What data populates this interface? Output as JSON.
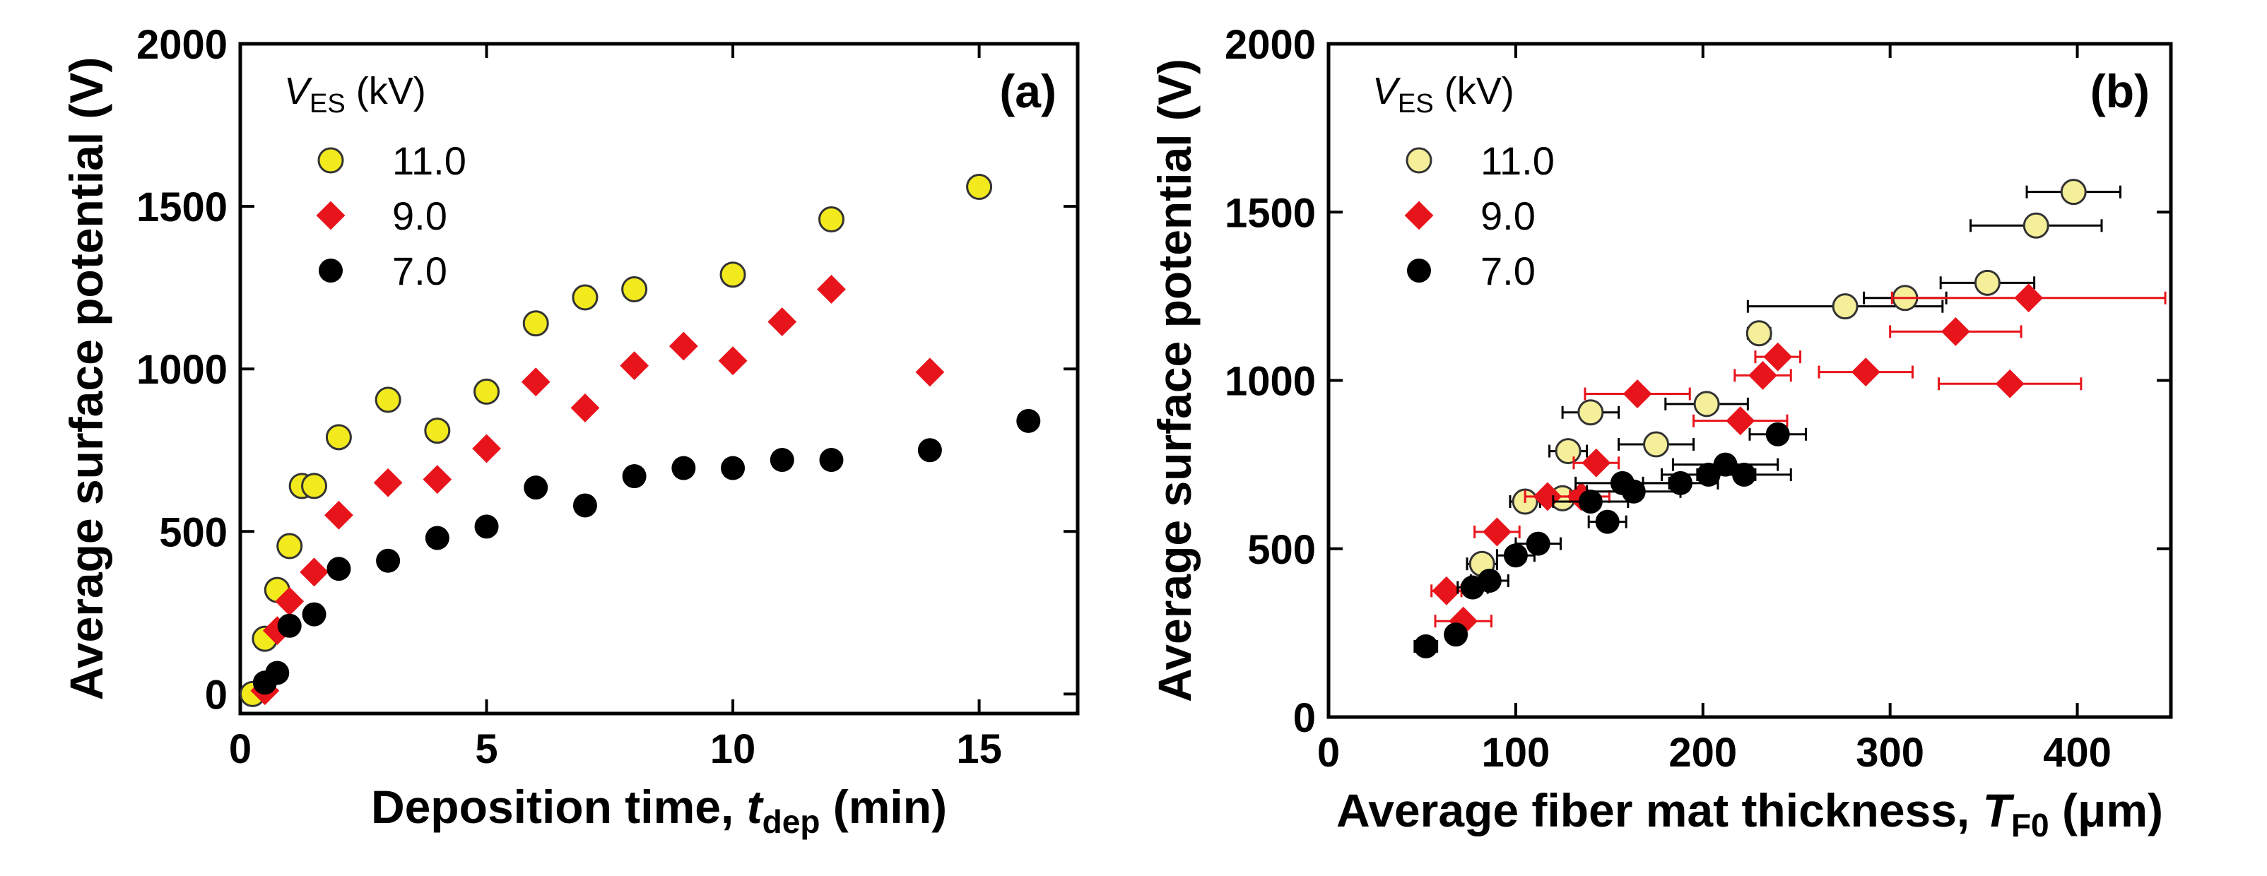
{
  "chart_data": [
    {
      "type": "scatter",
      "panel": "(a)",
      "xlabel_main": "Deposition time, ",
      "xlabel_var": "t",
      "xlabel_sub": "dep",
      "xlabel_unit": " (min)",
      "ylabel": "Average surface potential (V)",
      "xlim": [
        0,
        17
      ],
      "ylim": [
        -60,
        2000
      ],
      "xticks": [
        0,
        5,
        10,
        15
      ],
      "yticks": [
        0,
        500,
        1000,
        1500,
        2000
      ],
      "legend_title_var": "V",
      "legend_title_sub": "ES",
      "legend_title_unit": " (kV)",
      "series": [
        {
          "name": "11.0",
          "marker": "circle",
          "color": "#f2ea1d",
          "points": [
            [
              0.25,
              0
            ],
            [
              0.5,
              170
            ],
            [
              0.75,
              320
            ],
            [
              1.0,
              455
            ],
            [
              1.25,
              640
            ],
            [
              1.5,
              640
            ],
            [
              2,
              790
            ],
            [
              3,
              905
            ],
            [
              4,
              810
            ],
            [
              5,
              930
            ],
            [
              6,
              1140
            ],
            [
              7,
              1220
            ],
            [
              8,
              1245
            ],
            [
              10,
              1290
            ],
            [
              12,
              1460
            ],
            [
              15,
              1560
            ]
          ]
        },
        {
          "name": "9.0",
          "marker": "diamond",
          "color": "#e8141b",
          "points": [
            [
              0.5,
              10
            ],
            [
              0.75,
              195
            ],
            [
              1.0,
              285
            ],
            [
              1.5,
              375
            ],
            [
              2,
              550
            ],
            [
              3,
              650
            ],
            [
              4,
              660
            ],
            [
              5,
              755
            ],
            [
              6,
              960
            ],
            [
              7,
              880
            ],
            [
              8,
              1010
            ],
            [
              9,
              1070
            ],
            [
              10,
              1025
            ],
            [
              11,
              1145
            ],
            [
              12,
              1245
            ],
            [
              14,
              990
            ]
          ]
        },
        {
          "name": "7.0",
          "marker": "circle",
          "color": "#000000",
          "points": [
            [
              0.5,
              35
            ],
            [
              0.75,
              65
            ],
            [
              1.0,
              210
            ],
            [
              1.5,
              245
            ],
            [
              2,
              385
            ],
            [
              3,
              410
            ],
            [
              4,
              480
            ],
            [
              5,
              515
            ],
            [
              6,
              635
            ],
            [
              7,
              580
            ],
            [
              8,
              670
            ],
            [
              9,
              695
            ],
            [
              10,
              695
            ],
            [
              11,
              720
            ],
            [
              12,
              720
            ],
            [
              14,
              750
            ],
            [
              16,
              840
            ]
          ]
        }
      ]
    },
    {
      "type": "scatter",
      "panel": "(b)",
      "xlabel_main": "Average fiber mat thickness, ",
      "xlabel_var": "T",
      "xlabel_sub": "F0",
      "xlabel_unit": " (μm)",
      "ylabel": "Average surface potential (V)",
      "xlim": [
        0,
        450
      ],
      "ylim": [
        0,
        2000
      ],
      "xticks": [
        0,
        100,
        200,
        300,
        400
      ],
      "yticks": [
        0,
        500,
        1000,
        1500,
        2000
      ],
      "legend_title_var": "V",
      "legend_title_sub": "ES",
      "legend_title_unit": " (kV)",
      "series": [
        {
          "name": "11.0",
          "marker": "circle",
          "color": "#f5ef9a",
          "points": [
            [
              82,
              455,
              8
            ],
            [
              105,
              640,
              8
            ],
            [
              128,
              790,
              10
            ],
            [
              140,
              905,
              15
            ],
            [
              125,
              650,
              12
            ],
            [
              175,
              810,
              20
            ],
            [
              202,
              930,
              22
            ],
            [
              230,
              1140,
              6
            ],
            [
              276,
              1220,
              52
            ],
            [
              308,
              1245,
              22
            ],
            [
              352,
              1290,
              25
            ],
            [
              378,
              1460,
              35
            ],
            [
              398,
              1560,
              25
            ]
          ]
        },
        {
          "name": "9.0",
          "marker": "diamond",
          "color": "#e8141b",
          "points": [
            [
              63,
              375,
              8
            ],
            [
              72,
              285,
              15
            ],
            [
              90,
              550,
              12
            ],
            [
              117,
              655,
              12
            ],
            [
              135,
              655,
              15
            ],
            [
              143,
              755,
              12
            ],
            [
              165,
              960,
              28
            ],
            [
              220,
              880,
              25
            ],
            [
              232,
              1015,
              15
            ],
            [
              240,
              1070,
              12
            ],
            [
              287,
              1025,
              25
            ],
            [
              335,
              1145,
              35
            ],
            [
              374,
              1245,
              73
            ],
            [
              364,
              990,
              38
            ]
          ]
        },
        {
          "name": "7.0",
          "marker": "circle",
          "color": "#000000",
          "points": [
            [
              52,
              210,
              6
            ],
            [
              68,
              245,
              5
            ],
            [
              77,
              385,
              8
            ],
            [
              86,
              405,
              10
            ],
            [
              100,
              480,
              10
            ],
            [
              112,
              515,
              12
            ],
            [
              140,
              640,
              20
            ],
            [
              149,
              580,
              10
            ],
            [
              157,
              695,
              25
            ],
            [
              163,
              670,
              25
            ],
            [
              188,
              695,
              20
            ],
            [
              203,
              720,
              25
            ],
            [
              212,
              750,
              28
            ],
            [
              222,
              720,
              25
            ],
            [
              240,
              840,
              15
            ]
          ]
        }
      ]
    }
  ]
}
